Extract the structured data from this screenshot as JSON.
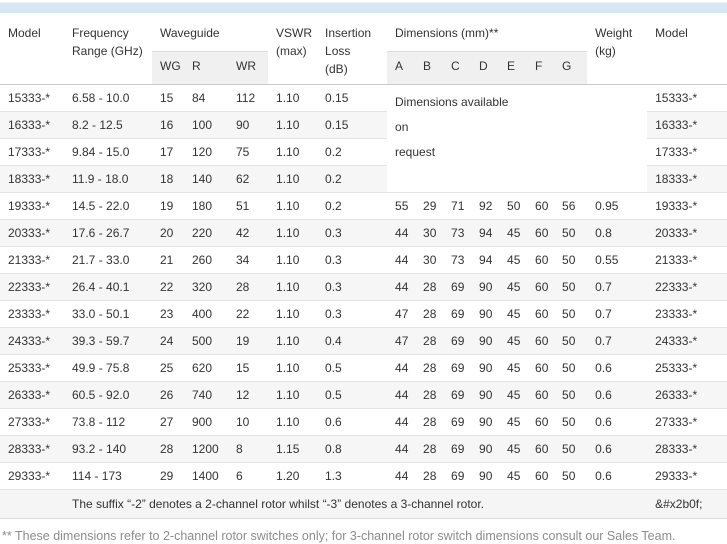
{
  "table": {
    "headers": {
      "model_left": "Model",
      "frequency": "Frequency\nRange (GHz)",
      "waveguide_group": "Waveguide",
      "waveguide_sub": [
        "WG",
        "R",
        "WR"
      ],
      "vswr": "VSWR\n(max)",
      "insertion_loss": "Insertion\nLoss\n(dB)",
      "dimensions_group": "Dimensions (mm)**",
      "dimensions_sub": [
        "A",
        "B",
        "C",
        "D",
        "E",
        "F",
        "G"
      ],
      "weight": "Weight\n(kg)",
      "model_right": "Model"
    },
    "dimensions_note": "Dimensions available\non\nrequest",
    "rows": [
      {
        "model": "15333-*",
        "freq": "6.58 - 10.0",
        "wg": "15",
        "r": "84",
        "wr": "112",
        "vswr": "1.10",
        "il": "0.15",
        "dims": null,
        "weight": null,
        "model2": "15333-*"
      },
      {
        "model": "16333-*",
        "freq": "8.2 - 12.5",
        "wg": "16",
        "r": "100",
        "wr": "90",
        "vswr": "1.10",
        "il": "0.15",
        "dims": null,
        "weight": null,
        "model2": "16333-*"
      },
      {
        "model": "17333-*",
        "freq": "9.84 - 15.0",
        "wg": "17",
        "r": "120",
        "wr": "75",
        "vswr": "1.10",
        "il": "0.2",
        "dims": null,
        "weight": null,
        "model2": "17333-*"
      },
      {
        "model": "18333-*",
        "freq": "11.9 - 18.0",
        "wg": "18",
        "r": "140",
        "wr": "62",
        "vswr": "1.10",
        "il": "0.2",
        "dims": null,
        "weight": null,
        "model2": "18333-*"
      },
      {
        "model": "19333-*",
        "freq": "14.5 - 22.0",
        "wg": "19",
        "r": "180",
        "wr": "51",
        "vswr": "1.10",
        "il": "0.2",
        "dims": [
          "55",
          "29",
          "71",
          "92",
          "50",
          "60",
          "56"
        ],
        "weight": "0.95",
        "model2": "19333-*"
      },
      {
        "model": "20333-*",
        "freq": "17.6 - 26.7",
        "wg": "20",
        "r": "220",
        "wr": "42",
        "vswr": "1.10",
        "il": "0.3",
        "dims": [
          "44",
          "30",
          "73",
          "94",
          "45",
          "60",
          "50"
        ],
        "weight": "0.8",
        "model2": "20333-*"
      },
      {
        "model": "21333-*",
        "freq": "21.7 - 33.0",
        "wg": "21",
        "r": "260",
        "wr": "34",
        "vswr": "1.10",
        "il": "0.3",
        "dims": [
          "44",
          "30",
          "73",
          "94",
          "45",
          "60",
          "50"
        ],
        "weight": "0.55",
        "model2": "21333-*"
      },
      {
        "model": "22333-*",
        "freq": "26.4 - 40.1",
        "wg": "22",
        "r": "320",
        "wr": "28",
        "vswr": "1.10",
        "il": "0.3",
        "dims": [
          "44",
          "28",
          "69",
          "90",
          "45",
          "60",
          "50"
        ],
        "weight": "0.7",
        "model2": "22333-*"
      },
      {
        "model": "23333-*",
        "freq": "33.0 - 50.1",
        "wg": "23",
        "r": "400",
        "wr": "22",
        "vswr": "1.10",
        "il": "0.3",
        "dims": [
          "47",
          "28",
          "69",
          "90",
          "45",
          "60",
          "50"
        ],
        "weight": "0.7",
        "model2": "23333-*"
      },
      {
        "model": "24333-*",
        "freq": "39.3 - 59.7",
        "wg": "24",
        "r": "500",
        "wr": "19",
        "vswr": "1.10",
        "il": "0.4",
        "dims": [
          "47",
          "28",
          "69",
          "90",
          "45",
          "60",
          "50"
        ],
        "weight": "0.7",
        "model2": "24333-*"
      },
      {
        "model": "25333-*",
        "freq": "49.9 - 75.8",
        "wg": "25",
        "r": "620",
        "wr": "15",
        "vswr": "1.10",
        "il": "0.5",
        "dims": [
          "44",
          "28",
          "69",
          "90",
          "45",
          "60",
          "50"
        ],
        "weight": "0.6",
        "model2": "25333-*"
      },
      {
        "model": "26333-*",
        "freq": "60.5 - 92.0",
        "wg": "26",
        "r": "740",
        "wr": "12",
        "vswr": "1.10",
        "il": "0.5",
        "dims": [
          "44",
          "28",
          "69",
          "90",
          "45",
          "60",
          "50"
        ],
        "weight": "0.6",
        "model2": "26333-*"
      },
      {
        "model": "27333-*",
        "freq": "73.8 - 112",
        "wg": "27",
        "r": "900",
        "wr": "10",
        "vswr": "1.10",
        "il": "0.6",
        "dims": [
          "44",
          "28",
          "69",
          "90",
          "45",
          "60",
          "50"
        ],
        "weight": "0.6",
        "model2": "27333-*"
      },
      {
        "model": "28333-*",
        "freq": "93.2 - 140",
        "wg": "28",
        "r": "1200",
        "wr": "8",
        "vswr": "1.15",
        "il": "0.8",
        "dims": [
          "44",
          "28",
          "69",
          "90",
          "45",
          "60",
          "50"
        ],
        "weight": "0.6",
        "model2": "28333-*"
      },
      {
        "model": "29333-*",
        "freq": "114 - 173",
        "wg": "29",
        "r": "1400",
        "wr": "6",
        "vswr": "1.20",
        "il": "1.3",
        "dims": [
          "44",
          "28",
          "69",
          "90",
          "45",
          "60",
          "50"
        ],
        "weight": "0.6",
        "model2": "29333-*"
      }
    ],
    "footer": {
      "note": "The suffix “-2” denotes a 2-channel rotor whilst “-3” denotes a 3-channel rotor.",
      "symbol": "&#x2b0f;"
    }
  },
  "footnote": "** These dimensions refer to 2-channel rotor switches only; for 3-channel rotor switch dimensions consult our Sales Team.",
  "colors": {
    "top_bar": "#d7e8f3",
    "stripe": "#f6f6f6",
    "subheader_bg": "#f0f0f0",
    "row_border": "#e4e4e4",
    "body_text": "#333333",
    "footnote_text": "#8c8c8c"
  }
}
